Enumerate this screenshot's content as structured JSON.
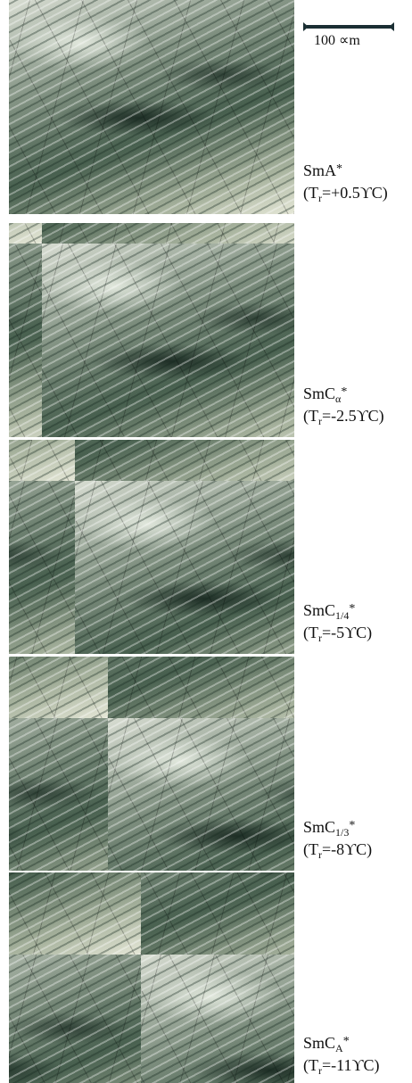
{
  "scale_bar": {
    "label": "100 ∝m"
  },
  "panels": [
    {
      "phase": {
        "base": "SmA",
        "sup": "*"
      },
      "temperature": {
        "prefix": "(T",
        "sub": "r",
        "rest": "=+0.5ϒC)"
      }
    },
    {
      "phase": {
        "base": "SmC",
        "sub": "α",
        "sup": "*"
      },
      "temperature": {
        "prefix": "(T",
        "sub": "r",
        "rest": "=-2.5ϒC)"
      }
    },
    {
      "phase": {
        "base": "SmC",
        "sub": "1/4",
        "sup": "*"
      },
      "temperature": {
        "prefix": "(T",
        "sub": "r",
        "rest": "=-5ϒC)"
      }
    },
    {
      "phase": {
        "base": "SmC",
        "sub": "1/3",
        "sup": "*"
      },
      "temperature": {
        "prefix": "(T",
        "sub": "r",
        "rest": "=-8ϒC)"
      }
    },
    {
      "phase": {
        "base": "SmC",
        "sub": "A",
        "sup": "*"
      },
      "temperature": {
        "prefix": "(T",
        "sub": "r",
        "rest": "=-11ϒC)"
      }
    }
  ]
}
